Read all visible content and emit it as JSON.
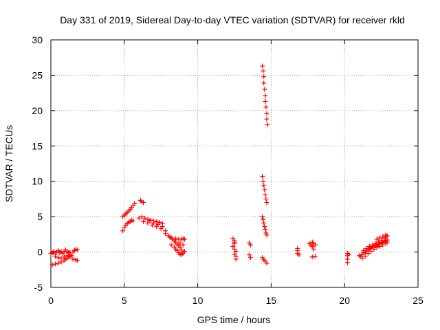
{
  "chart_data": {
    "type": "scatter",
    "title": "Day 331 of 2019, Sidereal Day-to-day VTEC variation (SDTVAR) for receiver rkld",
    "xlabel": "GPS time / hours",
    "ylabel": "SDTVAR / TECUs",
    "xlim": [
      0,
      25
    ],
    "ylim": [
      -5,
      30
    ],
    "xticks": [
      0,
      5,
      10,
      15,
      20,
      25
    ],
    "yticks": [
      -5,
      0,
      5,
      10,
      15,
      20,
      25,
      30
    ],
    "xtick_labels": [
      "0",
      "5",
      "10",
      "15",
      "20",
      "25"
    ],
    "ytick_labels": [
      "-5",
      "0",
      "5",
      "10",
      "15",
      "20",
      "25",
      "30"
    ],
    "grid": true,
    "marker": "+",
    "color": "#ff0000",
    "series": [
      {
        "name": "SDTVAR",
        "points": [
          [
            0.0,
            -0.2
          ],
          [
            0.1,
            -0.1
          ],
          [
            0.2,
            0.1
          ],
          [
            0.3,
            -0.3
          ],
          [
            0.4,
            0.0
          ],
          [
            0.5,
            0.2
          ],
          [
            0.6,
            -0.1
          ],
          [
            0.7,
            0.1
          ],
          [
            0.8,
            -0.2
          ],
          [
            0.9,
            0.0
          ],
          [
            1.0,
            0.3
          ],
          [
            1.1,
            0.1
          ],
          [
            1.2,
            -0.1
          ],
          [
            1.3,
            0.0
          ],
          [
            0.1,
            -1.8
          ],
          [
            0.3,
            -1.7
          ],
          [
            0.5,
            -1.6
          ],
          [
            0.7,
            -1.4
          ],
          [
            0.9,
            -1.2
          ],
          [
            1.0,
            -1.0
          ],
          [
            1.1,
            -0.9
          ],
          [
            1.2,
            -0.7
          ],
          [
            1.3,
            -0.6
          ],
          [
            1.4,
            -0.5
          ],
          [
            0.3,
            -0.6
          ],
          [
            0.5,
            -0.8
          ],
          [
            0.7,
            -0.9
          ],
          [
            0.9,
            -0.7
          ],
          [
            1.1,
            -0.5
          ],
          [
            1.3,
            -0.3
          ],
          [
            1.5,
            0.0
          ],
          [
            1.6,
            0.2
          ],
          [
            1.7,
            0.4
          ],
          [
            1.8,
            0.3
          ],
          [
            1.5,
            -1.0
          ],
          [
            1.7,
            -1.1
          ],
          [
            1.8,
            -1.2
          ],
          [
            4.9,
            3.0
          ],
          [
            5.0,
            3.5
          ],
          [
            5.1,
            3.8
          ],
          [
            5.2,
            4.0
          ],
          [
            5.3,
            4.2
          ],
          [
            5.4,
            4.3
          ],
          [
            5.5,
            4.5
          ],
          [
            5.6,
            4.4
          ],
          [
            4.9,
            5.0
          ],
          [
            5.0,
            5.2
          ],
          [
            5.1,
            5.4
          ],
          [
            5.2,
            5.6
          ],
          [
            5.3,
            5.8
          ],
          [
            5.4,
            6.0
          ],
          [
            5.5,
            6.3
          ],
          [
            5.6,
            6.6
          ],
          [
            5.7,
            6.9
          ],
          [
            6.1,
            7.3
          ],
          [
            6.2,
            7.1
          ],
          [
            6.3,
            7.0
          ],
          [
            6.0,
            4.8
          ],
          [
            6.2,
            5.0
          ],
          [
            6.4,
            4.8
          ],
          [
            6.6,
            4.6
          ],
          [
            6.8,
            4.5
          ],
          [
            7.0,
            4.4
          ],
          [
            7.2,
            4.3
          ],
          [
            7.4,
            4.2
          ],
          [
            7.6,
            4.0
          ],
          [
            6.3,
            4.3
          ],
          [
            6.6,
            4.1
          ],
          [
            6.9,
            3.8
          ],
          [
            7.2,
            3.6
          ],
          [
            7.5,
            3.3
          ],
          [
            7.8,
            3.0
          ],
          [
            6.7,
            4.4
          ],
          [
            7.0,
            4.1
          ],
          [
            7.3,
            3.9
          ],
          [
            7.6,
            3.6
          ],
          [
            7.8,
            2.6
          ],
          [
            8.0,
            2.3
          ],
          [
            8.1,
            2.1
          ],
          [
            8.2,
            2.0
          ],
          [
            8.3,
            1.8
          ],
          [
            8.4,
            1.6
          ],
          [
            8.5,
            1.4
          ],
          [
            8.6,
            1.1
          ],
          [
            8.7,
            0.9
          ],
          [
            8.8,
            0.6
          ],
          [
            8.9,
            0.3
          ],
          [
            9.0,
            0.0
          ],
          [
            8.2,
            1.0
          ],
          [
            8.4,
            0.7
          ],
          [
            8.5,
            0.4
          ],
          [
            8.6,
            0.2
          ],
          [
            8.7,
            -0.1
          ],
          [
            8.8,
            -0.3
          ],
          [
            8.9,
            -0.4
          ],
          [
            9.0,
            -0.2
          ],
          [
            9.1,
            0.1
          ],
          [
            8.5,
            1.9
          ],
          [
            8.7,
            1.8
          ],
          [
            8.9,
            1.8
          ],
          [
            9.0,
            1.9
          ],
          [
            9.1,
            1.8
          ],
          [
            8.8,
            1.3
          ],
          [
            9.0,
            1.0
          ],
          [
            12.4,
            1.9
          ],
          [
            12.5,
            1.6
          ],
          [
            12.5,
            1.2
          ],
          [
            12.4,
            0.8
          ],
          [
            12.5,
            0.4
          ],
          [
            12.6,
            0.1
          ],
          [
            12.5,
            -0.3
          ],
          [
            12.6,
            -0.6
          ],
          [
            12.6,
            -1.0
          ],
          [
            12.5,
            1.4
          ],
          [
            13.5,
            1.3
          ],
          [
            13.6,
            1.0
          ],
          [
            13.5,
            -0.4
          ],
          [
            13.6,
            -0.8
          ],
          [
            14.4,
            26.3
          ],
          [
            14.45,
            25.6
          ],
          [
            14.5,
            24.8
          ],
          [
            14.5,
            23.9
          ],
          [
            14.55,
            23.0
          ],
          [
            14.6,
            22.1
          ],
          [
            14.6,
            21.3
          ],
          [
            14.65,
            20.5
          ],
          [
            14.7,
            19.6
          ],
          [
            14.7,
            18.8
          ],
          [
            14.75,
            18.0
          ],
          [
            14.4,
            10.7
          ],
          [
            14.45,
            10.0
          ],
          [
            14.5,
            9.4
          ],
          [
            14.55,
            8.8
          ],
          [
            14.6,
            8.1
          ],
          [
            14.65,
            7.5
          ],
          [
            14.7,
            7.0
          ],
          [
            14.4,
            5.0
          ],
          [
            14.45,
            4.6
          ],
          [
            14.5,
            4.1
          ],
          [
            14.55,
            3.6
          ],
          [
            14.6,
            3.2
          ],
          [
            14.65,
            2.7
          ],
          [
            14.7,
            2.4
          ],
          [
            14.4,
            -0.8
          ],
          [
            14.5,
            -1.1
          ],
          [
            14.6,
            -1.3
          ],
          [
            14.7,
            -1.6
          ],
          [
            16.8,
            0.5
          ],
          [
            16.8,
            0.2
          ],
          [
            16.8,
            -0.2
          ],
          [
            16.9,
            -0.4
          ],
          [
            17.6,
            1.2
          ],
          [
            17.7,
            1.0
          ],
          [
            17.8,
            1.4
          ],
          [
            17.8,
            0.8
          ],
          [
            17.9,
            1.2
          ],
          [
            17.9,
            0.4
          ],
          [
            18.0,
            1.0
          ],
          [
            18.0,
            -0.6
          ],
          [
            17.8,
            -0.7
          ],
          [
            20.2,
            -0.2
          ],
          [
            20.2,
            -0.5
          ],
          [
            20.3,
            -0.3
          ],
          [
            20.2,
            -1.0
          ],
          [
            20.2,
            -1.5
          ],
          [
            21.0,
            -0.5
          ],
          [
            21.1,
            -0.6
          ],
          [
            21.2,
            -0.3
          ],
          [
            21.3,
            -0.1
          ],
          [
            21.4,
            0.0
          ],
          [
            21.5,
            0.2
          ],
          [
            21.6,
            0.4
          ],
          [
            21.7,
            0.5
          ],
          [
            21.8,
            0.6
          ],
          [
            21.9,
            0.7
          ],
          [
            22.0,
            0.8
          ],
          [
            22.1,
            0.9
          ],
          [
            22.2,
            1.0
          ],
          [
            22.3,
            1.1
          ],
          [
            22.4,
            1.2
          ],
          [
            22.5,
            1.3
          ],
          [
            22.6,
            1.4
          ],
          [
            22.7,
            1.5
          ],
          [
            22.8,
            1.6
          ],
          [
            22.9,
            1.7
          ],
          [
            21.2,
            -0.9
          ],
          [
            21.4,
            -0.6
          ],
          [
            21.6,
            -0.2
          ],
          [
            21.8,
            0.1
          ],
          [
            22.0,
            0.4
          ],
          [
            22.2,
            0.6
          ],
          [
            22.4,
            0.8
          ],
          [
            22.6,
            1.0
          ],
          [
            22.8,
            1.2
          ],
          [
            22.9,
            1.4
          ],
          [
            21.3,
            0.2
          ],
          [
            21.5,
            0.5
          ],
          [
            21.7,
            0.8
          ],
          [
            21.9,
            1.0
          ],
          [
            22.1,
            1.2
          ],
          [
            22.3,
            1.4
          ],
          [
            22.5,
            1.6
          ],
          [
            22.7,
            1.9
          ],
          [
            22.8,
            2.1
          ],
          [
            22.9,
            2.3
          ],
          [
            22.2,
            1.8
          ],
          [
            22.4,
            2.0
          ],
          [
            22.6,
            2.2
          ],
          [
            22.8,
            2.4
          ]
        ]
      }
    ]
  }
}
